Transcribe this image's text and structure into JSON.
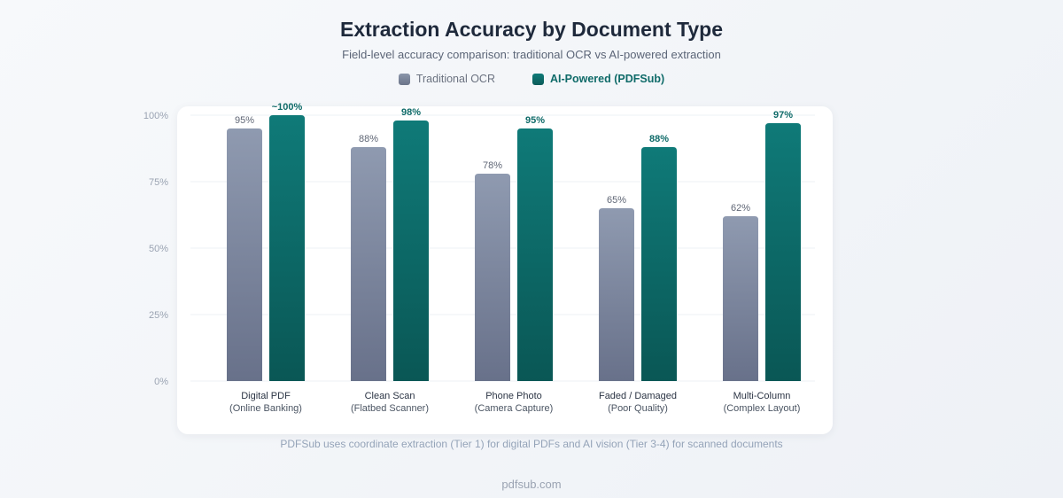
{
  "header": {
    "title": "Extraction Accuracy by Document Type",
    "subtitle": "Field-level accuracy comparison: traditional OCR vs AI-powered extraction"
  },
  "legend": {
    "ocr_label": "Traditional OCR",
    "ai_label": "AI-Powered (PDFSub)"
  },
  "colors": {
    "ocr_top": "#8f9ab0",
    "ocr_bottom": "#68718a",
    "ai_top": "#0f7a78",
    "ai_bottom": "#0a5755",
    "ocr_label": "#5f6675",
    "ai_label": "#0f6b69"
  },
  "chart_data": {
    "type": "bar",
    "title": "Extraction Accuracy by Document Type",
    "subtitle": "Field-level accuracy comparison: traditional OCR vs AI-powered extraction",
    "ylim": [
      0,
      100
    ],
    "yticks": [
      0,
      25,
      50,
      75,
      100
    ],
    "ytick_labels": [
      "0%",
      "25%",
      "50%",
      "75%",
      "100%"
    ],
    "grid": true,
    "legend_position": "top-center",
    "categories": [
      {
        "line1": "Digital PDF",
        "line2": "(Online Banking)"
      },
      {
        "line1": "Clean Scan",
        "line2": "(Flatbed Scanner)"
      },
      {
        "line1": "Phone Photo",
        "line2": "(Camera Capture)"
      },
      {
        "line1": "Faded / Damaged",
        "line2": "(Poor Quality)"
      },
      {
        "line1": "Multi-Column",
        "line2": "(Complex Layout)"
      }
    ],
    "series": [
      {
        "name": "Traditional OCR",
        "values": [
          95,
          88,
          78,
          65,
          62
        ],
        "labels": [
          "95%",
          "88%",
          "78%",
          "65%",
          "62%"
        ]
      },
      {
        "name": "AI-Powered (PDFSub)",
        "values": [
          100,
          98,
          95,
          88,
          97
        ],
        "labels": [
          "~100%",
          "98%",
          "95%",
          "88%",
          "97%"
        ]
      }
    ]
  },
  "footer": {
    "note": "PDFSub uses coordinate extraction (Tier 1) for digital PDFs and AI vision (Tier 3-4) for scanned documents",
    "site": "pdfsub.com"
  }
}
